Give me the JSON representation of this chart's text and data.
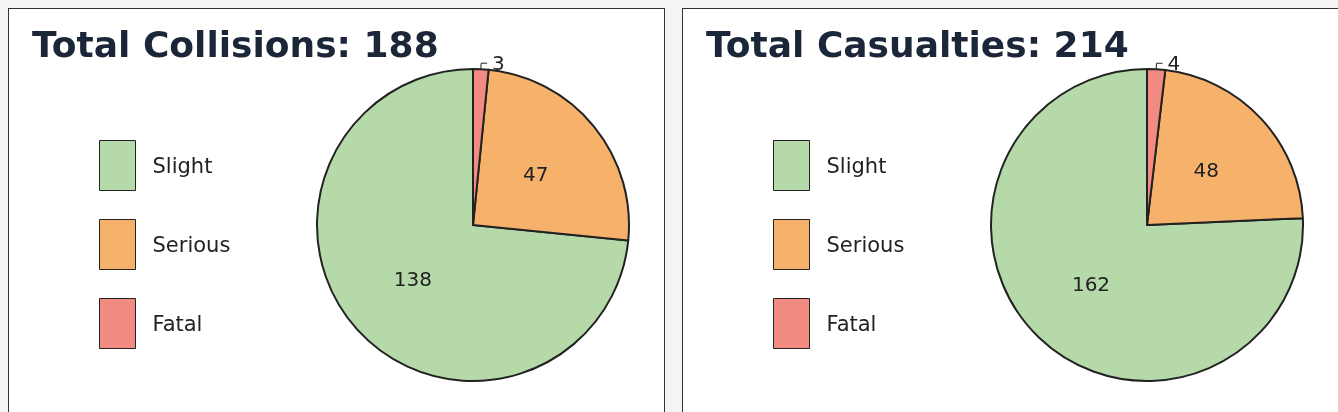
{
  "chart_data": [
    {
      "type": "pie",
      "title": "Total Collisions: 188",
      "categories": [
        "Slight",
        "Serious",
        "Fatal"
      ],
      "values": [
        138,
        47,
        3
      ],
      "colors": [
        "#b6d9aa",
        "#f6b26b",
        "#f28b82"
      ],
      "data_labels": true,
      "legend": "left"
    },
    {
      "type": "pie",
      "title": "Total Casualties: 214",
      "categories": [
        "Slight",
        "Serious",
        "Fatal"
      ],
      "values": [
        162,
        48,
        4
      ],
      "colors": [
        "#b6d9aa",
        "#f6b26b",
        "#f28b82"
      ],
      "data_labels": true,
      "legend": "left"
    }
  ]
}
